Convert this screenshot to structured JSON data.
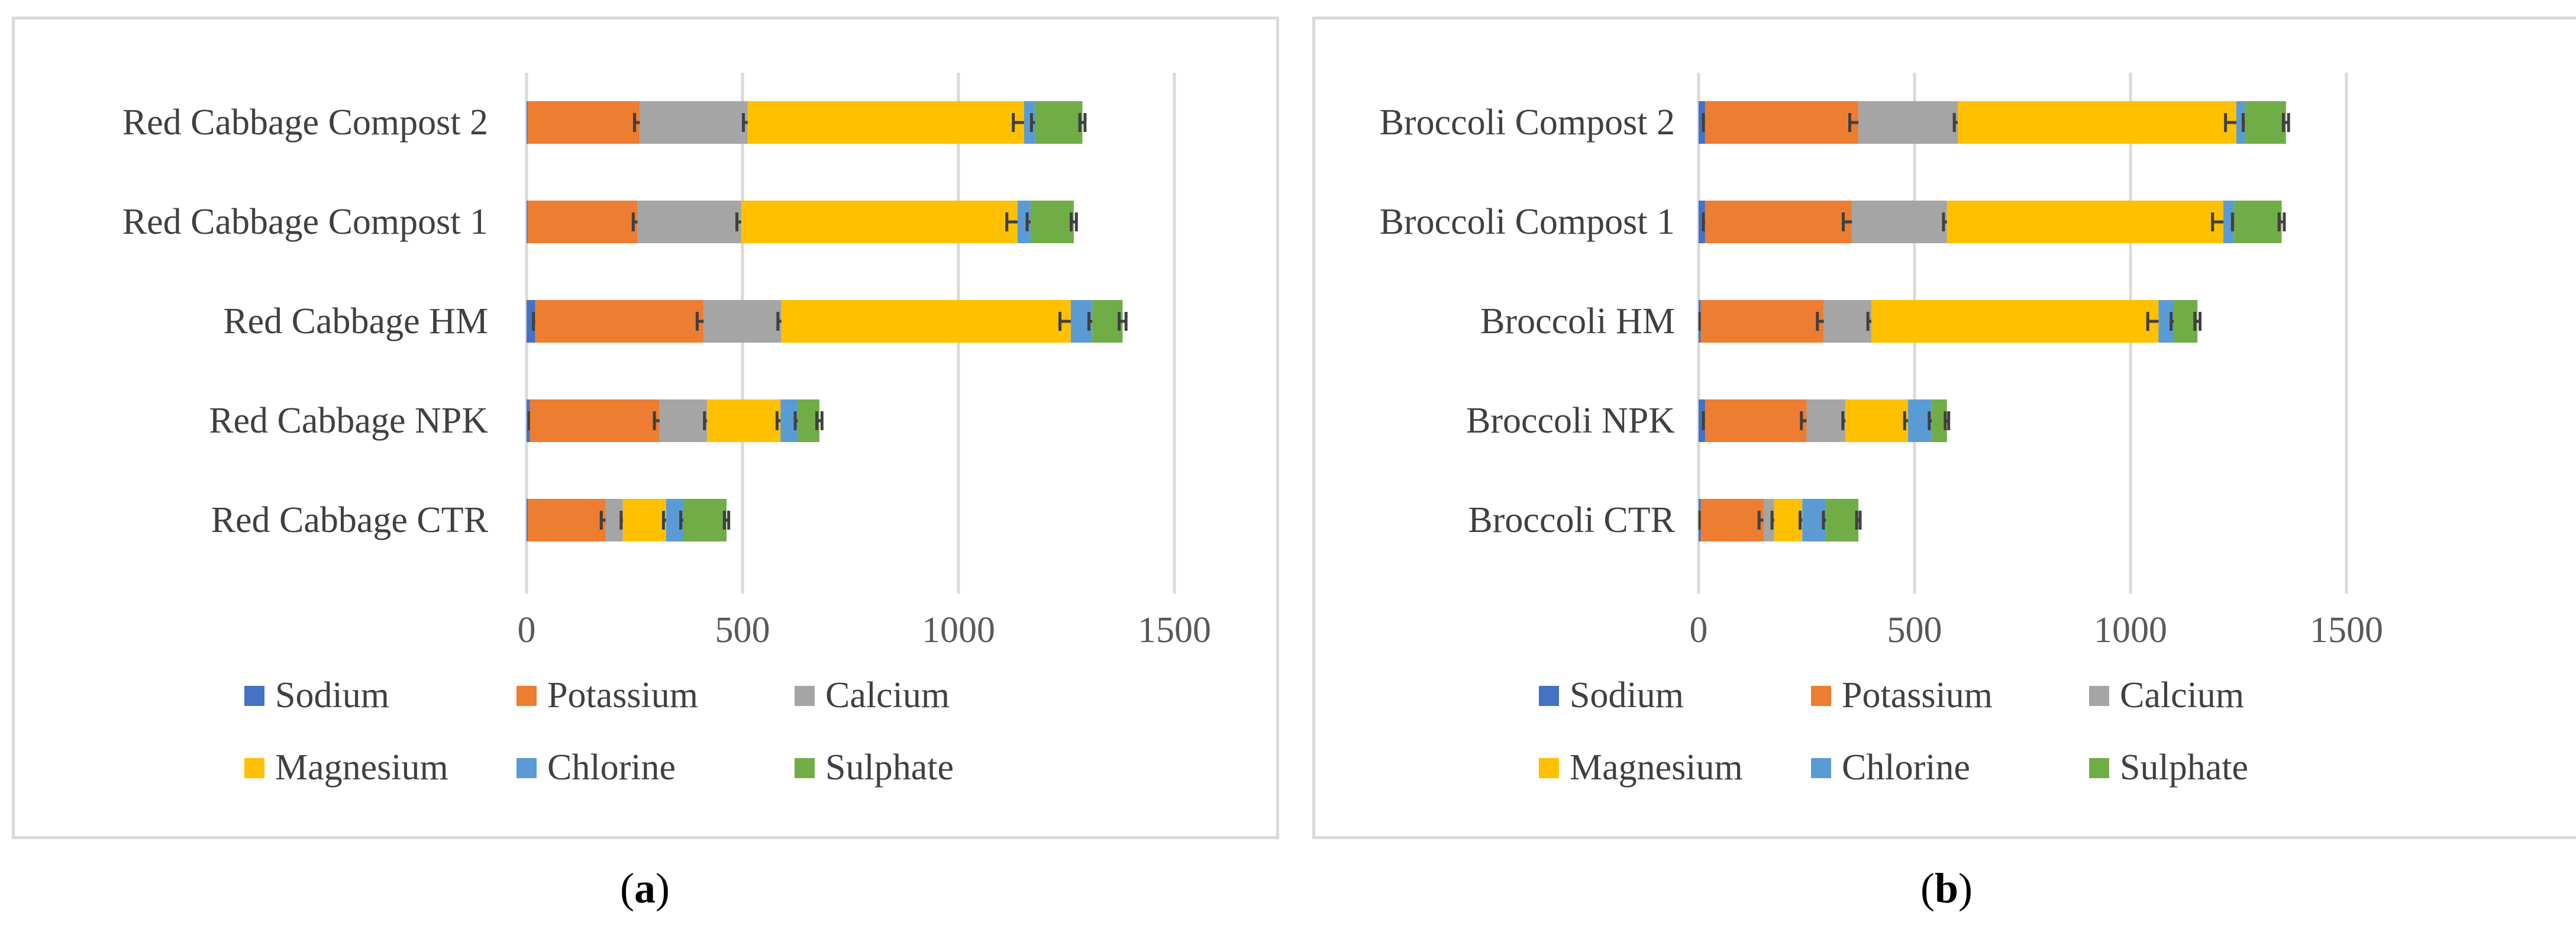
{
  "chart_data": [
    {
      "type": "bar",
      "orientation": "horizontal",
      "stacked": true,
      "panel_label": "a",
      "categories": [
        "Red Cabbage Compost 2",
        "Red Cabbage Compost 1",
        "Red Cabbage HM",
        "Red Cabbage NPK",
        "Red Cabbage CTR"
      ],
      "series": [
        {
          "name": "Sodium",
          "color": "#4472C4",
          "values": [
            2,
            2,
            20,
            8,
            3
          ],
          "errors": [
            0,
            0,
            4,
            2,
            0
          ]
        },
        {
          "name": "Potassium",
          "color": "#ED7D31",
          "values": [
            260,
            255,
            390,
            300,
            180
          ],
          "errors": [
            12,
            10,
            15,
            12,
            10
          ]
        },
        {
          "name": "Calcium",
          "color": "#A5A5A5",
          "values": [
            250,
            240,
            180,
            110,
            40
          ],
          "errors": [
            10,
            10,
            8,
            6,
            4
          ]
        },
        {
          "name": "Magnesium",
          "color": "#FFC000",
          "values": [
            640,
            640,
            670,
            170,
            100
          ],
          "errors": [
            25,
            25,
            25,
            8,
            6
          ]
        },
        {
          "name": "Chlorine",
          "color": "#5B9BD5",
          "values": [
            25,
            30,
            50,
            40,
            40
          ],
          "errors": [
            8,
            8,
            8,
            6,
            6
          ]
        },
        {
          "name": "Sulphate",
          "color": "#70AD47",
          "values": [
            110,
            100,
            70,
            50,
            100
          ],
          "errors": [
            6,
            6,
            8,
            6,
            5
          ]
        }
      ],
      "x_ticks": [
        "0",
        "500",
        "1000",
        "1500"
      ],
      "xlim": [
        0,
        1500
      ],
      "grid": true,
      "legend_position": "bottom",
      "title": "",
      "xlabel": "",
      "ylabel": ""
    },
    {
      "type": "bar",
      "orientation": "horizontal",
      "stacked": true,
      "panel_label": "b",
      "categories": [
        "Broccoli Compost 2",
        "Broccoli Compost 1",
        "Broccoli HM",
        "Broccoli NPK",
        "Broccoli CTR"
      ],
      "series": [
        {
          "name": "Sodium",
          "color": "#4472C4",
          "values": [
            15,
            15,
            5,
            15,
            5
          ],
          "errors": [
            4,
            4,
            2,
            4,
            2
          ]
        },
        {
          "name": "Potassium",
          "color": "#ED7D31",
          "values": [
            355,
            340,
            285,
            235,
            145
          ],
          "errors": [
            20,
            20,
            15,
            12,
            10
          ]
        },
        {
          "name": "Calcium",
          "color": "#A5A5A5",
          "values": [
            230,
            220,
            110,
            90,
            25
          ],
          "errors": [
            8,
            8,
            8,
            6,
            5
          ]
        },
        {
          "name": "Magnesium",
          "color": "#FFC000",
          "values": [
            645,
            640,
            665,
            145,
            65
          ],
          "errors": [
            25,
            25,
            25,
            8,
            5
          ]
        },
        {
          "name": "Chlorine",
          "color": "#5B9BD5",
          "values": [
            20,
            25,
            35,
            55,
            55
          ],
          "errors": [
            4,
            4,
            6,
            6,
            6
          ]
        },
        {
          "name": "Sulphate",
          "color": "#70AD47",
          "values": [
            95,
            110,
            55,
            35,
            75
          ],
          "errors": [
            6,
            6,
            6,
            4,
            4
          ]
        }
      ],
      "x_ticks": [
        "0",
        "500",
        "1000",
        "1500"
      ],
      "xlim": [
        0,
        1500
      ],
      "grid": true,
      "legend_position": "bottom",
      "title": "",
      "xlabel": "",
      "ylabel": ""
    }
  ]
}
